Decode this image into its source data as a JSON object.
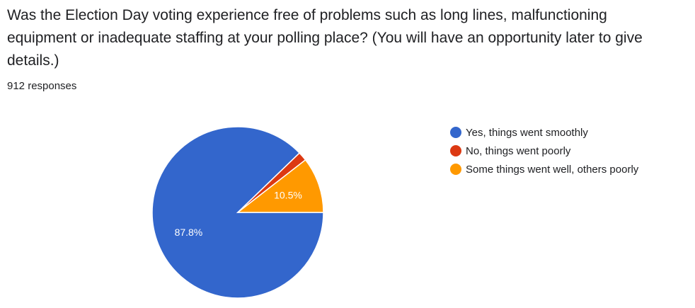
{
  "question": {
    "title": "Was the Election Day voting experience free of problems such as long lines, malfunctioning equipment or inadequate staffing at your polling place? (You will have an opportunity later to give details.)",
    "responses": "912 responses"
  },
  "chart_data": {
    "type": "pie",
    "title": "",
    "categories": [
      "Yes, things went smoothly",
      "No, things went poorly",
      "Some things went well, others poorly"
    ],
    "values": [
      87.8,
      1.7,
      10.5
    ],
    "value_labels": [
      "87.8%",
      "",
      "10.5%"
    ],
    "colors": [
      "#3366cc",
      "#dc3912",
      "#ff9900"
    ],
    "legend_position": "right",
    "start_angle": "3 o'clock, clockwise"
  }
}
